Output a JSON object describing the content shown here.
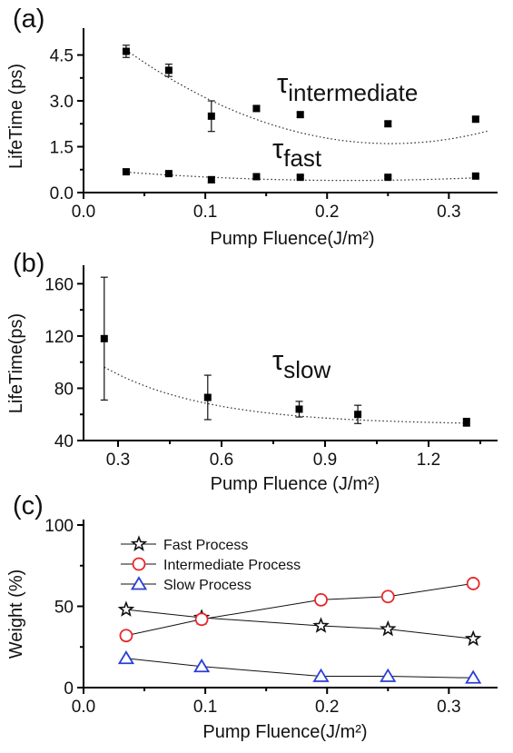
{
  "figure": {
    "panel_labels": [
      "(a)",
      "(b)",
      "(c)"
    ]
  },
  "chart_data": [
    {
      "type": "scatter",
      "panel": "(a)",
      "xlabel": "Pump Fluence(J/m²)",
      "ylabel": "LifeTime (ps)",
      "xlim": [
        0.0,
        0.34
      ],
      "ylim": [
        0.0,
        5.2
      ],
      "xticks": [
        0.0,
        0.1,
        0.2,
        0.3
      ],
      "xtick_labels": [
        "0.0",
        "0.1",
        "0.2",
        "0.3"
      ],
      "yticks": [
        0.0,
        1.5,
        3.0,
        4.5
      ],
      "ytick_labels": [
        "0.0",
        "1.5",
        "3.0",
        "4.5"
      ],
      "grid": false,
      "series": [
        {
          "name": "τintermediate",
          "name_main": "τ",
          "name_sub": "intermediate",
          "x": [
            0.035,
            0.07,
            0.105,
            0.142,
            0.178,
            0.25,
            0.322
          ],
          "y": [
            4.62,
            4.0,
            2.5,
            2.75,
            2.55,
            2.25,
            2.4
          ],
          "err": [
            0.2,
            0.2,
            0.5,
            0.08,
            0.08,
            0.08,
            0.08
          ],
          "fit": {
            "type": "quadratic",
            "coeffs": [
              5.727,
              -32.7,
              64.8
            ],
            "x_range": [
              0.035,
              0.333
            ]
          }
        },
        {
          "name": "τfast",
          "name_main": "τ",
          "name_sub": "fast",
          "x": [
            0.035,
            0.07,
            0.105,
            0.142,
            0.178,
            0.25,
            0.322
          ],
          "y": [
            0.68,
            0.62,
            0.42,
            0.52,
            0.5,
            0.5,
            0.54
          ],
          "err": [
            0.08,
            0.05,
            0.1,
            0.05,
            0.05,
            0.05,
            0.05
          ],
          "fit": {
            "type": "quadratic",
            "coeffs": [
              0.78,
              -3.5,
              8.0
            ],
            "x_range": [
              0.035,
              0.322
            ]
          }
        }
      ]
    },
    {
      "type": "scatter",
      "panel": "(b)",
      "xlabel": "Pump Fluence (J/m²)",
      "ylabel": "LifeTime(ps)",
      "xlim": [
        0.2,
        1.4
      ],
      "ylim": [
        40,
        170
      ],
      "xticks": [
        0.3,
        0.6,
        0.9,
        1.2
      ],
      "xtick_labels": [
        "0.3",
        "0.6",
        "0.9",
        "1.2"
      ],
      "yticks": [
        40,
        80,
        120,
        160
      ],
      "ytick_labels": [
        "40",
        "80",
        "120",
        "160"
      ],
      "grid": false,
      "series": [
        {
          "name": "τslow",
          "name_main": "τ",
          "name_sub": "slow",
          "x": [
            0.26,
            0.56,
            0.825,
            0.995,
            1.31
          ],
          "y": [
            118,
            73,
            64,
            60,
            54
          ],
          "err": [
            47,
            17,
            6,
            7,
            3
          ],
          "fit": {
            "type": "exp",
            "y0": 52,
            "A": 105,
            "t": 0.3,
            "x_range": [
              0.26,
              1.31
            ]
          }
        }
      ]
    },
    {
      "type": "line",
      "panel": "(c)",
      "xlabel": "Pump Fluence(J/m²)",
      "ylabel": "Weight (%)",
      "xlim": [
        0.0,
        0.34
      ],
      "ylim": [
        0,
        100
      ],
      "xticks": [
        0.0,
        0.1,
        0.2,
        0.3
      ],
      "xtick_labels": [
        "0.0",
        "0.1",
        "0.2",
        "0.3"
      ],
      "yticks": [
        0,
        50,
        100
      ],
      "ytick_labels": [
        "0",
        "50",
        "100"
      ],
      "grid": false,
      "legend_position": "top-left",
      "series": [
        {
          "name": "Fast Process",
          "marker": "star",
          "color": "#111111",
          "x": [
            0.035,
            0.097,
            0.195,
            0.25,
            0.32
          ],
          "values": [
            48,
            43,
            38,
            36,
            30
          ]
        },
        {
          "name": "Intermediate Process",
          "marker": "circle",
          "color": "#e8252b",
          "x": [
            0.035,
            0.097,
            0.195,
            0.25,
            0.32
          ],
          "values": [
            32,
            42,
            54,
            56,
            64
          ]
        },
        {
          "name": "Slow Process",
          "marker": "triangle",
          "color": "#2a3fd6",
          "x": [
            0.035,
            0.097,
            0.195,
            0.25,
            0.32
          ],
          "values": [
            18,
            13,
            7,
            7,
            6
          ]
        }
      ]
    }
  ]
}
